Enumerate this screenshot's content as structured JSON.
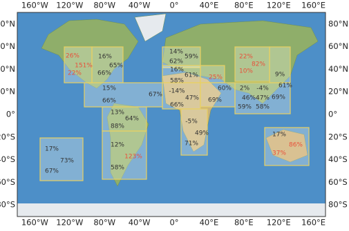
{
  "map": {
    "lon_ticks": [
      {
        "value": -160,
        "label": "160°W"
      },
      {
        "value": -120,
        "label": "120°W"
      },
      {
        "value": -80,
        "label": "80°W"
      },
      {
        "value": -40,
        "label": "40°W"
      },
      {
        "value": 0,
        "label": "0°"
      },
      {
        "value": 40,
        "label": "40°E"
      },
      {
        "value": 80,
        "label": "80°E"
      },
      {
        "value": 120,
        "label": "120°E"
      },
      {
        "value": 160,
        "label": "160°E"
      }
    ],
    "lat_ticks": [
      {
        "value": 80,
        "label": "80°N"
      },
      {
        "value": 60,
        "label": "60°N"
      },
      {
        "value": 40,
        "label": "40°N"
      },
      {
        "value": 20,
        "label": "20°N"
      },
      {
        "value": 0,
        "label": "0°"
      },
      {
        "value": -20,
        "label": "20°S"
      },
      {
        "value": -40,
        "label": "40°S"
      },
      {
        "value": -60,
        "label": "60°S"
      },
      {
        "value": -80,
        "label": "80°S"
      }
    ],
    "regions": [
      {
        "labels": [
          {
            "text": "26%",
            "color": "#e8503a"
          },
          {
            "text": "151%",
            "color": "#e8503a"
          },
          {
            "text": "22%",
            "color": "#e8503a"
          }
        ]
      },
      {
        "labels": [
          {
            "text": "16%",
            "color": "#333333"
          },
          {
            "text": "65%",
            "color": "#333333"
          },
          {
            "text": "66%",
            "color": "#333333"
          }
        ]
      },
      {
        "labels": [
          {
            "text": "15%",
            "color": "#333333"
          },
          {
            "text": "67%",
            "color": "#333333"
          },
          {
            "text": "66%",
            "color": "#333333"
          }
        ]
      },
      {
        "labels": [
          {
            "text": "13%",
            "color": "#333333"
          },
          {
            "text": "64%",
            "color": "#333333"
          },
          {
            "text": "88%",
            "color": "#333333"
          }
        ]
      },
      {
        "labels": [
          {
            "text": "12%",
            "color": "#333333"
          },
          {
            "text": "123%",
            "color": "#e8503a"
          },
          {
            "text": "58%",
            "color": "#333333"
          }
        ]
      },
      {
        "labels": [
          {
            "text": "17%",
            "color": "#333333"
          },
          {
            "text": "73%",
            "color": "#333333"
          },
          {
            "text": "67%",
            "color": "#333333"
          }
        ]
      },
      {
        "labels": [
          {
            "text": "14%",
            "color": "#333333"
          },
          {
            "text": "59%",
            "color": "#333333"
          },
          {
            "text": "62%",
            "color": "#333333"
          }
        ]
      },
      {
        "labels": [
          {
            "text": "16%",
            "color": "#333333"
          },
          {
            "text": "61%",
            "color": "#333333"
          },
          {
            "text": "58%",
            "color": "#333333"
          }
        ]
      },
      {
        "labels": [
          {
            "text": "25%",
            "color": "#e8503a"
          }
        ]
      },
      {
        "labels": [
          {
            "text": "-14%",
            "color": "#333333"
          },
          {
            "text": "47%",
            "color": "#333333"
          },
          {
            "text": "66%",
            "color": "#333333"
          }
        ]
      },
      {
        "labels": [
          {
            "text": "60%",
            "color": "#333333"
          },
          {
            "text": "69%",
            "color": "#333333"
          }
        ]
      },
      {
        "labels": [
          {
            "text": "-5%",
            "color": "#333333"
          },
          {
            "text": "49%",
            "color": "#333333"
          },
          {
            "text": "71%",
            "color": "#333333"
          }
        ]
      },
      {
        "labels": [
          {
            "text": "22%",
            "color": "#e8503a"
          },
          {
            "text": "82%",
            "color": "#e8503a"
          },
          {
            "text": "10%",
            "color": "#e8503a"
          }
        ]
      },
      {
        "labels": [
          {
            "text": "9%",
            "color": "#333333"
          }
        ]
      },
      {
        "labels": [
          {
            "text": "2%",
            "color": "#333333"
          },
          {
            "text": "46%",
            "color": "#333333"
          },
          {
            "text": "59%",
            "color": "#333333"
          },
          {
            "text": "-4%",
            "color": "#333333"
          },
          {
            "text": "47%",
            "color": "#333333"
          },
          {
            "text": "58%",
            "color": "#333333"
          },
          {
            "text": "61%",
            "color": "#333333"
          },
          {
            "text": "69%",
            "color": "#333333"
          }
        ]
      },
      {
        "labels": [
          {
            "text": "17%",
            "color": "#333333"
          },
          {
            "text": "86%",
            "color": "#e8503a"
          },
          {
            "text": "37%",
            "color": "#e8503a"
          }
        ]
      }
    ]
  }
}
